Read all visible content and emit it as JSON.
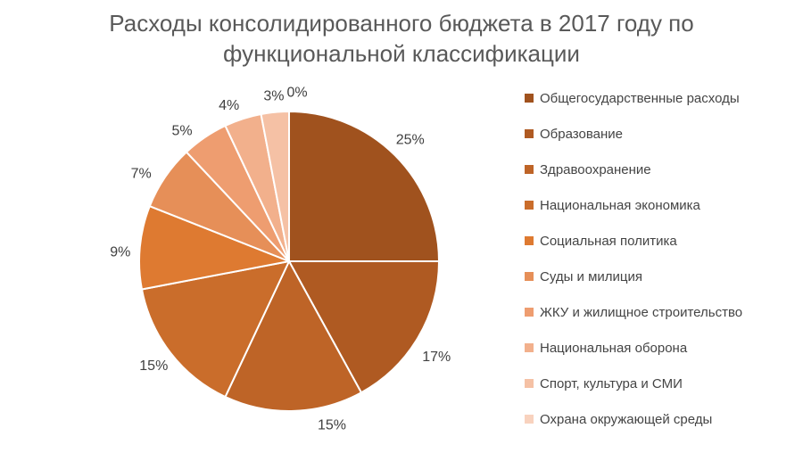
{
  "chart_data": {
    "type": "pie",
    "title": "Расходы консолидированного бюджета в 2017 году по функциональной классификации",
    "legend_position": "right",
    "start_angle_deg": 0,
    "direction": "clockwise",
    "unit": "%",
    "slices": [
      {
        "label": "Общегосударственные расходы",
        "value": 25,
        "display": "25%",
        "color": "#A0521E"
      },
      {
        "label": "Образование",
        "value": 17,
        "display": "17%",
        "color": "#AF5A22"
      },
      {
        "label": "Здравоохранение",
        "value": 15,
        "display": "15%",
        "color": "#BE6427"
      },
      {
        "label": "Национальная экономика",
        "value": 15,
        "display": "15%",
        "color": "#CA6D2B"
      },
      {
        "label": "Социальная политика",
        "value": 9,
        "display": "9%",
        "color": "#DE7A31"
      },
      {
        "label": "Суды и милиция",
        "value": 7,
        "display": "7%",
        "color": "#E68F58"
      },
      {
        "label": "ЖКУ и жилищное строительство",
        "value": 5,
        "display": "5%",
        "color": "#EE9D70"
      },
      {
        "label": "Национальная оборона",
        "value": 4,
        "display": "4%",
        "color": "#F2B08C"
      },
      {
        "label": "Спорт, культура и СМИ",
        "value": 3,
        "display": "3%",
        "color": "#F5C1A5"
      },
      {
        "label": "Охрана окружающей среды",
        "value": 0,
        "display": "0%",
        "color": "#F8D2BE"
      }
    ]
  },
  "styles": {
    "background": "#ffffff",
    "title_color": "#595959",
    "percent_label_color": "#404040",
    "legend_text_color": "#444444",
    "slice_border_color": "#ffffff"
  }
}
